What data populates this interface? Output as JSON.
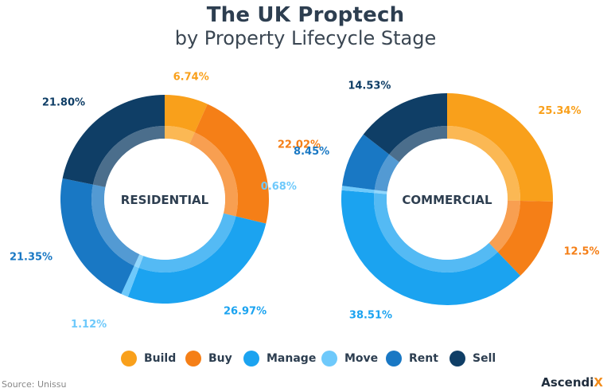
{
  "title": "The UK Proptech",
  "subtitle": "by Property Lifecycle Stage",
  "source": "Source: Unissu",
  "brand": {
    "main": "Ascendi",
    "accent": "X"
  },
  "colors": {
    "Build": "#f9a01b",
    "Buy": "#f57f17",
    "Manage": "#1ba3f0",
    "Move": "#6ec9fb",
    "Rent": "#1978c4",
    "Sell": "#0f3e66"
  },
  "legend": [
    "Build",
    "Buy",
    "Manage",
    "Move",
    "Rent",
    "Sell"
  ],
  "chart_data": [
    {
      "type": "pie",
      "style": "donut",
      "center_label": "RESIDENTIAL",
      "categories": [
        "Build",
        "Buy",
        "Manage",
        "Move",
        "Rent",
        "Sell"
      ],
      "values": [
        6.74,
        22.02,
        26.97,
        1.12,
        21.35,
        21.8
      ],
      "labels": [
        "6.74%",
        "22.02%",
        "26.97%",
        "1.12%",
        "21.35%",
        "21.80%"
      ]
    },
    {
      "type": "pie",
      "style": "donut",
      "center_label": "COMMERCIAL",
      "categories": [
        "Build",
        "Buy",
        "Manage",
        "Move",
        "Rent",
        "Sell"
      ],
      "values": [
        25.34,
        12.5,
        38.51,
        0.68,
        8.45,
        14.53
      ],
      "labels": [
        "25.34%",
        "12.5%",
        "38.51%",
        "0.68%",
        "8.45%",
        "14.53%"
      ]
    }
  ]
}
